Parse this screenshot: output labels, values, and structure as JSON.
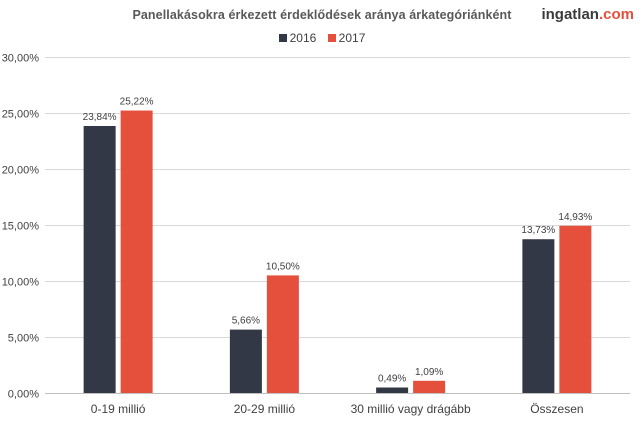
{
  "header": {
    "title": "Panellakásokra érkezett érdeklődések aránya árkategóriánként",
    "logo_main": "ingatlan",
    "logo_domain": ".com"
  },
  "colors": {
    "series_2016": "#323846",
    "series_2017": "#e4503b",
    "grid": "#d9d9d9",
    "text": "#404040"
  },
  "chart_data": {
    "type": "bar",
    "title": "Panellakásokra érkezett érdeklődések aránya árkategóriánként",
    "categories": [
      "0-19 millió",
      "20-29 millió",
      "30 millió vagy drágább",
      "Összesen"
    ],
    "series": [
      {
        "name": "2016",
        "values": [
          23.84,
          5.66,
          0.49,
          13.73
        ],
        "labels": [
          "23,84%",
          "5,66%",
          "0,49%",
          "13,73%"
        ]
      },
      {
        "name": "2017",
        "values": [
          25.22,
          10.5,
          1.09,
          14.93
        ],
        "labels": [
          "25,22%",
          "10,50%",
          "1,09%",
          "14,93%"
        ]
      }
    ],
    "ylim": [
      0,
      30
    ],
    "yticks": [
      "0,00%",
      "5,00%",
      "10,00%",
      "15,00%",
      "20,00%",
      "25,00%",
      "30,00%"
    ],
    "grid": true,
    "legend": "top-center"
  }
}
